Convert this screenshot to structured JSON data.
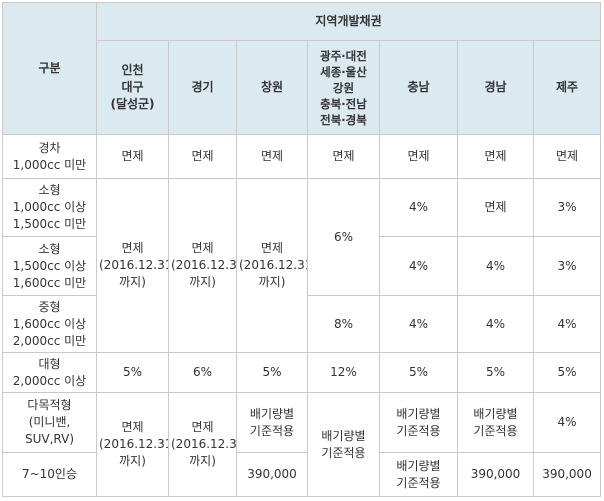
{
  "header": {
    "category": "구분",
    "group": "지역개발채권",
    "regions": [
      [
        "인천",
        "대구",
        "(달성군)"
      ],
      [
        "경기"
      ],
      [
        "창원"
      ],
      [
        "광주·대전",
        "세종·울산",
        "강원",
        "충북·전남",
        "전북·경북"
      ],
      [
        "충남"
      ],
      [
        "경남"
      ],
      [
        "제주"
      ]
    ]
  },
  "rows": {
    "compact": [
      "경차",
      "1,000cc 미만"
    ],
    "small1": [
      "소형",
      "1,000cc 이상",
      "1,500cc 미만"
    ],
    "small2": [
      "소형",
      "1,500cc 이상",
      "1,600cc 미만"
    ],
    "mid": [
      "중형",
      "1,600cc 이상",
      "2,000cc 미만"
    ],
    "large": [
      "대형",
      "2,000cc 이상"
    ],
    "multi": [
      "다목적형",
      "(미니밴,",
      "SUV,RV)"
    ],
    "van": [
      "7~10인승"
    ]
  },
  "cells": {
    "exempt": "면제",
    "exempt_until": [
      "면제",
      "(2016.12.31",
      "까지)"
    ],
    "pct4": "4%",
    "pct3": "3%",
    "pct5": "5%",
    "pct6": "6%",
    "pct8": "8%",
    "pct12": "12%",
    "by_displacement": [
      "배기량별",
      "기준적용"
    ],
    "amount": "390,000"
  }
}
